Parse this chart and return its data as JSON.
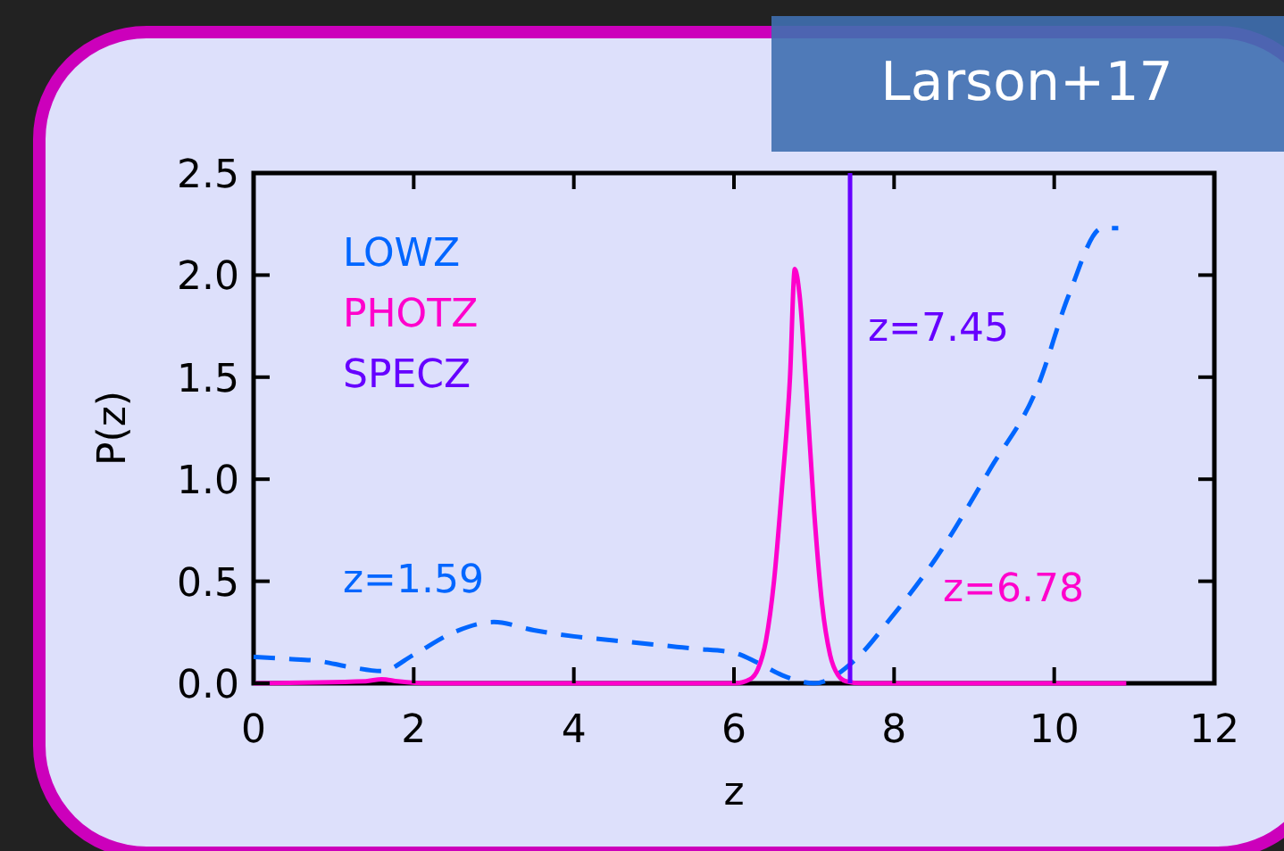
{
  "chart_data": {
    "type": "line",
    "title": "Larson+17",
    "xlabel": "z",
    "ylabel": "P(z)",
    "xlim": [
      0,
      12
    ],
    "ylim": [
      0,
      2.5
    ],
    "xticks": [
      0,
      2,
      4,
      6,
      8,
      10,
      12
    ],
    "yticks": [
      {
        "value": 0,
        "label": "0.0"
      },
      0.5,
      {
        "value": 1,
        "label": "1.0"
      },
      1.5,
      {
        "value": 2,
        "label": "2.0"
      },
      2.5
    ],
    "legend": "top left",
    "grid": false,
    "series": [
      {
        "name": "LOWZ",
        "color": "#0066ff",
        "line_style": "dashed",
        "x": [
          0,
          0.4,
          0.8,
          1.2,
          1.6,
          2,
          2.5,
          3,
          3.5,
          4,
          4.5,
          5,
          5.5,
          6,
          6.3,
          6.6,
          7,
          7.5,
          7.96,
          8.5,
          9.2,
          9.8,
          10.18,
          10.6,
          10.8
        ],
        "values": [
          0.13,
          0.12,
          0.11,
          0.08,
          0.06,
          0.14,
          0.25,
          0.3,
          0.26,
          0.23,
          0.21,
          0.19,
          0.17,
          0.15,
          0.1,
          0.04,
          0.0,
          0.11,
          0.32,
          0.6,
          1.05,
          1.46,
          1.9,
          2.23,
          2.23
        ]
      },
      {
        "name": "PHOTZ",
        "color": "#ff00cc",
        "line_style": "solid",
        "x": [
          0,
          1.4,
          1.6,
          1.8,
          2.2,
          6,
          6.2,
          6.3,
          6.4,
          6.5,
          6.6,
          6.7,
          6.76,
          6.82,
          6.9,
          7,
          7.1,
          7.2,
          7.3,
          7.4,
          7.6,
          10.9
        ],
        "values": [
          0,
          0.01,
          0.02,
          0.01,
          0,
          0,
          0.02,
          0.07,
          0.21,
          0.5,
          0.96,
          1.5,
          2.03,
          1.9,
          1.47,
          0.85,
          0.39,
          0.14,
          0.04,
          0.01,
          0,
          0
        ]
      },
      {
        "name": "SPECZ",
        "color": "#6600ff",
        "line_style": "solid",
        "x": [
          7.45,
          7.45
        ],
        "values": [
          0,
          2.5
        ]
      }
    ],
    "annotations": [
      "z=1.59",
      "z=7.45",
      "z=6.78"
    ]
  }
}
